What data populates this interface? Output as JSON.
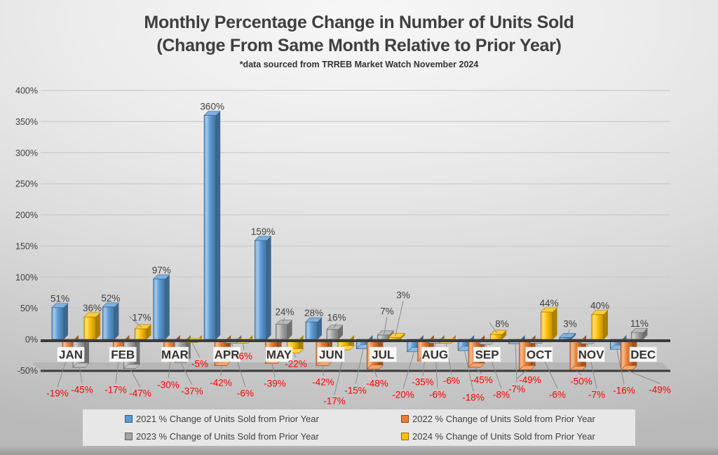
{
  "title": {
    "line1": "Monthly Percentage Change in Number of Units Sold",
    "line2": "(Change From Same Month Relative to Prior Year)",
    "subtitle": "*data sourced from TRREB Market Watch November 2024"
  },
  "chart_data": {
    "type": "bar",
    "style": "3d-clustered-column",
    "categories": [
      "JAN",
      "FEB",
      "MAR",
      "APR",
      "MAY",
      "JUN",
      "JUL",
      "AUG",
      "SEP",
      "OCT",
      "NOV",
      "DEC"
    ],
    "series": [
      {
        "name": "2021 % Change of Units Sold from Prior Year",
        "color": "#5B9BD5",
        "values": [
          51,
          52,
          97,
          360,
          159,
          28,
          -15,
          -20,
          -18,
          -7,
          3,
          -16
        ]
      },
      {
        "name": "2022 % Change of Units Sold from Prior Year",
        "color": "#ED7D31",
        "values": [
          -19,
          -17,
          -30,
          -42,
          -39,
          -42,
          -48,
          -35,
          -45,
          -49,
          -50,
          -49
        ]
      },
      {
        "name": "2023 % Change of Units Sold from Prior Year",
        "color": "#A5A5A5",
        "values": [
          -45,
          -47,
          -37,
          -6,
          24,
          16,
          7,
          -6,
          -8,
          -6,
          -7,
          11
        ]
      },
      {
        "name": "2024 % Change of Units Sold from Prior Year",
        "color": "#FFC000",
        "values": [
          36,
          17,
          -5,
          -6,
          -22,
          -17,
          3,
          -6,
          8,
          44,
          40,
          null
        ]
      }
    ],
    "y_ticks": [
      400,
      350,
      300,
      250,
      200,
      150,
      100,
      50,
      0,
      -50
    ],
    "ylim": [
      -50,
      400
    ],
    "value_suffix": "%",
    "grid": true,
    "legend_position": "bottom",
    "positive_label_color": "#3f3f3f",
    "negative_label_color": "#ff0000",
    "axis_line_color": "#3a3a3a",
    "gridline_color": "#cbcbcb"
  }
}
